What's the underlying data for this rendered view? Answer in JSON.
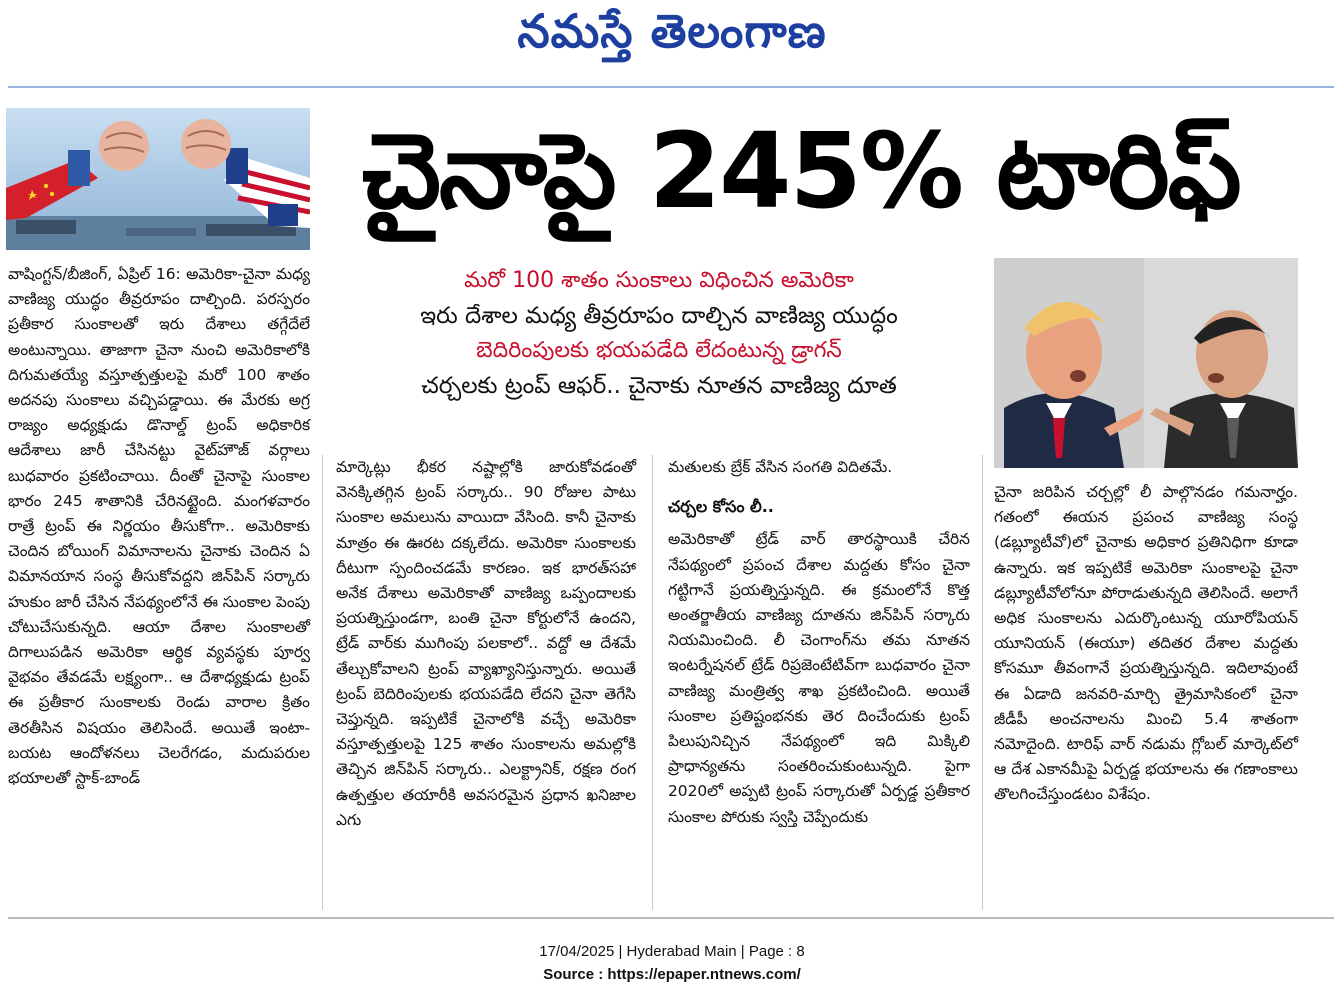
{
  "masthead": {
    "title": "నమస్తే తెలంగాణ"
  },
  "headline": "చైనాపై 245% టారిఫ్",
  "decks": [
    {
      "text": "మరో 100 శాతం సుంకాలు విధించిన అమెరికా",
      "style": "red"
    },
    {
      "text": "ఇరు దేశాల మధ్య తీవ్రరూపం దాల్చిన వాణిజ్య యుద్ధం",
      "style": "black"
    },
    {
      "text": "బెదిరింపులకు భయపడేది లేదంటున్న డ్రాగన్",
      "style": "red"
    },
    {
      "text": "చర్చలకు ట్రంప్ ఆఫర్.. చైనాకు నూతన వాణిజ్య దూత",
      "style": "black"
    }
  ],
  "columns": {
    "col1": "వాషింగ్టన్/బీజింగ్, ఏప్రిల్ 16: అమెరికా-చైనా మధ్య వాణిజ్య యుద్ధం తీవ్రరూపం దాల్చింది. పరస్పరం ప్రతీకార సుంకాలతో ఇరు దేశాలు తగ్గేదేలే అంటున్నాయి. తాజాగా చైనా నుంచి అమెరికాలోకి దిగుమతయ్యే వస్తూత్పత్తులపై మరో 100 శాతం అదనపు సుంకాలు వచ్చిపడ్డాయి. ఈ మేరకు అగ్ర రాజ్యం అధ్యక్షుడు డొనాల్డ్ ట్రంప్ అధికారిక ఆదేశాలు జారీ చేసినట్టు వైట్‌హౌజ్ వర్గాలు బుధవారం ప్రకటించాయి. దీంతో చైనాపై సుంకాల భారం 245 శాతానికి చేరినట్టైంది. మంగళవారం రాత్రే ట్రంప్ ఈ నిర్ణయం తీసుకోగా.. అమెరికాకు చెందిన బోయింగ్ విమానాలను చైనాకు చెందిన ఏ విమానయాన సంస్థ తీసుకోవద్దని జిన్‌పిన్ సర్కారు హుకుం జారీ చేసిన నేపథ్యంలోనే ఈ సుంకాల పెంపు చోటుచేసుకున్నది. ఆయా దేశాల సుంకాలతో దిగాలుపడిన అమెరికా ఆర్థిక వ్యవస్థకు పూర్వ వైభవం తేవడమే లక్ష్యంగా.. ఆ దేశాధ్యక్షుడు ట్రంప్ ఈ ప్రతీకార సుంకాలకు రెండు వారాల క్రితం తెరతీసిన విషయం తెలిసిందే. అయితే ఇంటా-బయట ఆందోళనలు చెలరేగడం, మదుపరుల భయాలతో స్టాక్-బాండ్",
    "col2": "మార్కెట్లు భీకర నష్టాల్లోకి జారుకోవడంతో వెనక్కితగ్గిన ట్రంప్ సర్కారు.. 90 రోజుల పాటు సుంకాల అమలును వాయిదా వేసింది. కానీ చైనాకు మాత్రం ఈ ఊరట దక్కలేదు. అమెరికా సుంకాలకు దీటుగా స్పందించడమే కారణం. ఇక భారత్‌సహా అనేక దేశాలు అమెరికాతో వాణిజ్య ఒప్పందాలకు ప్రయత్నిస్తుండగా, బంతి చైనా కోర్టులోనే ఉందని, ట్రేడ్ వార్‌కు ముగింపు పలకాలో.. వద్దో ఆ దేశమే తేల్చుకోవాలని ట్రంప్ వ్యాఖ్యానిస్తున్నారు. అయితే ట్రంప్ బెదిరింపులకు భయపడేది లేదని చైనా తెగేసి చెప్తున్నది. ఇప్పటికే చైనాలోకి వచ్చే అమెరికా వస్తూత్పత్తులపై 125 శాతం సుంకాలను అమల్లోకి తెచ్చిన జిన్‌పిన్ సర్కారు.. ఎలక్ట్రానిక్, రక్షణ రంగ ఉత్పత్తుల తయారీకి అవసరమైన ప్రధాన ఖనిజాల ఎగు",
    "col3_intro": "మతులకు బ్రేక్ వేసిన సంగతి విదితమే.",
    "col3_subhead": "చర్చల కోసం లీ..",
    "col3_body": "అమెరికాతో ట్రేడ్ వార్ తారస్థాయికి చేరిన నేపథ్యంలో ప్రపంచ దేశాల మద్దతు కోసం చైనా గట్టిగానే ప్రయత్నిస్తున్నది. ఈ క్రమంలోనే కొత్త అంతర్జాతీయ వాణిజ్య దూతను జిన్‌పిన్ సర్కారు నియమించింది. లీ చెంగాంగ్‌ను తమ నూతన ఇంటర్నేషనల్ ట్రేడ్ రిప్రజెంటేటివ్‌గా బుధవారం చైనా వాణిజ్య మంత్రిత్వ శాఖ ప్రకటించింది. అయితే సుంకాల ప్రతిష్టంభనకు తెర దించేందుకు ట్రంప్ పిలుపునిచ్చిన నేపథ్యంలో ఇది మిక్కిలి ప్రాధాన్యతను సంతరించుకుంటున్నది. పైగా 2020లో అప్పటి ట్రంప్ సర్కారుతో ఏర్పడ్డ ప్రతీకార సుంకాల పోరుకు స్వస్తి చెప్పేందుకు",
    "col4": "చైనా జరిపిన చర్చల్లో లీ పాల్గొనడం గమనార్హం. గతంలో ఈయన ప్రపంచ వాణిజ్య సంస్థ (డబ్ల్యూటీవో)లో చైనాకు అధికార ప్రతినిధిగా కూడా ఉన్నారు. ఇక ఇప్పటికే అమెరికా సుంకాలపై చైనా డబ్ల్యూటీవోలోనూ పోరాడుతున్నది తెలిసిందే. అలాగే అధిక సుంకాలను ఎదుర్కొంటున్న యూరోపియన్ యూనియన్ (ఈయూ) తదితర దేశాల మద్దతు కోసమూ తీవంగానే ప్రయత్నిస్తున్నది. ఇదిలావుంటే ఈ ఏడాది జనవరి-మార్చి త్రైమాసికంలో చైనా జీడీపీ అంచనాలను మించి 5.4 శాతంగా నమోదైంది. టారిఫ్ వార్ నడుమ గ్లోబల్ మార్కెట్‌లో ఆ దేశ ఎకానమీపై ఏర్పడ్డ భయాలను ఈ గణాంకాలు తొలగించేస్తుండటం విశేషం."
  },
  "footer": {
    "line1": "17/04/2025 | Hyderabad Main | Page : 8",
    "line2": "Source : https://epaper.ntnews.com/"
  },
  "colors": {
    "masthead": "#1d3fa0",
    "deck_red": "#c8102e"
  }
}
